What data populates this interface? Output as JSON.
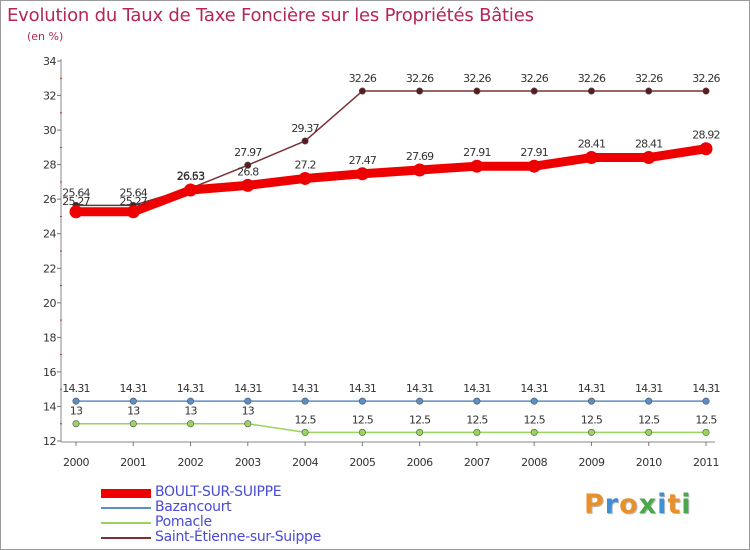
{
  "title": "Evolution du Taux de Taxe Foncière sur les Propriétés Bâties",
  "subtitle": "(en %)",
  "logo": {
    "text": "Proxiti",
    "letter_colors": [
      "#e8912c",
      "#3d8fd6",
      "#e8912c",
      "#4aa84a",
      "#3d8fd6",
      "#e8912c",
      "#4aa84a"
    ]
  },
  "chart_data": {
    "type": "line",
    "categories": [
      "2000",
      "2001",
      "2002",
      "2003",
      "2004",
      "2005",
      "2006",
      "2007",
      "2008",
      "2009",
      "2010",
      "2011"
    ],
    "ylim": [
      12,
      34
    ],
    "yticks": [
      "12",
      "14",
      "16",
      "18",
      "20",
      "22",
      "24",
      "26",
      "28",
      "30",
      "32",
      "34"
    ],
    "grid": false,
    "legend_position": "bottom-left",
    "series": [
      {
        "name": "BOULT-SUR-SUIPPE",
        "color": "#ee0000",
        "values": [
          25.27,
          25.27,
          26.53,
          26.8,
          27.2,
          27.47,
          27.69,
          27.91,
          27.91,
          28.41,
          28.41,
          28.92
        ],
        "labels": [
          "25.27",
          "25.27",
          "26.53",
          "26.8",
          "27.2",
          "27.47",
          "27.69",
          "27.91",
          "27.91",
          "28.41",
          "28.41",
          "28.92"
        ]
      },
      {
        "name": "Bazancourt",
        "color": "#5b8fc7",
        "values": [
          14.31,
          14.31,
          14.31,
          14.31,
          14.31,
          14.31,
          14.31,
          14.31,
          14.31,
          14.31,
          14.31,
          14.31
        ],
        "labels": [
          "14.31",
          "14.31",
          "14.31",
          "14.31",
          "14.31",
          "14.31",
          "14.31",
          "14.31",
          "14.31",
          "14.31",
          "14.31",
          "14.31"
        ]
      },
      {
        "name": "Pomacle",
        "color": "#99d45e",
        "values": [
          13,
          13,
          13,
          13,
          12.5,
          12.5,
          12.5,
          12.5,
          12.5,
          12.5,
          12.5,
          12.5
        ],
        "labels": [
          "13",
          "13",
          "13",
          "13",
          "12.5",
          "12.5",
          "12.5",
          "12.5",
          "12.5",
          "12.5",
          "12.5",
          "12.5"
        ]
      },
      {
        "name": "Saint-Étienne-sur-Suippe",
        "color": "#7a3035",
        "values": [
          25.64,
          25.64,
          26.63,
          27.97,
          29.37,
          32.26,
          32.26,
          32.26,
          32.26,
          32.26,
          32.26,
          32.26
        ],
        "labels": [
          "25.64",
          "25.64",
          "26.63",
          "27.97",
          "29.37",
          "32.26",
          "32.26",
          "32.26",
          "32.26",
          "32.26",
          "32.26",
          "32.26"
        ]
      }
    ]
  }
}
